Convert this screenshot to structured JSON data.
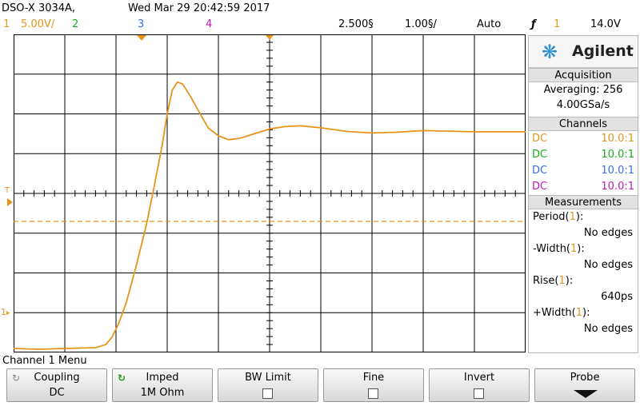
{
  "header": {
    "model": "DSO-X 3034A,",
    "datetime": "Wed Mar 29 20:42:59 2017",
    "ch1_num": "1",
    "ch1_scale": "5.00V/",
    "ch2_num": "2",
    "ch3_num": "3",
    "ch4_num": "4",
    "delay": "2.500§",
    "timebase": "1.00§/",
    "trigger_mode": "Auto",
    "trigger_symbol": "ƒ",
    "trigger_source": "1",
    "trigger_level": "14.0V"
  },
  "panel": {
    "brand": "Agilent",
    "acquisition_title": "Acquisition",
    "averaging": "Averaging: 256",
    "sample_rate": "4.00GSa/s",
    "channels_title": "Channels",
    "channels": [
      {
        "coupling": "DC",
        "probe": "10.0:1",
        "color": "#e8931a"
      },
      {
        "coupling": "DC",
        "probe": "10.0:1",
        "color": "#1aaa1a"
      },
      {
        "coupling": "DC",
        "probe": "10.0:1",
        "color": "#3a6ee8"
      },
      {
        "coupling": "DC",
        "probe": "10.0:1",
        "color": "#c21ab4"
      }
    ],
    "measurements_title": "Measurements",
    "measurements": [
      {
        "label": "Period(",
        "ch": "1",
        "close": "):",
        "value": "No edges"
      },
      {
        "label": "-Width(",
        "ch": "1",
        "close": "):",
        "value": "No edges"
      },
      {
        "label": "Rise(",
        "ch": "1",
        "close": "):",
        "value": "640ps"
      },
      {
        "label": "+Width(",
        "ch": "1",
        "close": "):",
        "value": "No edges"
      }
    ]
  },
  "menu": {
    "title": "Channel 1 Menu",
    "keys": [
      {
        "label": "Coupling",
        "value": "DC"
      },
      {
        "label": "Imped",
        "value": "1M Ohm"
      },
      {
        "label": "BW Limit",
        "value": ""
      },
      {
        "label": "Fine",
        "value": ""
      },
      {
        "label": "Invert",
        "value": ""
      },
      {
        "label": "Probe",
        "value": ""
      }
    ]
  },
  "screen": {
    "trace_color": "#e8931a",
    "grid_color": "#000000",
    "ground_label": "1",
    "trigger_marker": "T"
  },
  "waveform": [
    [
      0.0,
      7.9
    ],
    [
      0.5,
      7.92
    ],
    [
      1.0,
      7.9
    ],
    [
      1.6,
      7.88
    ],
    [
      1.8,
      7.8
    ],
    [
      1.92,
      7.62
    ],
    [
      2.05,
      7.28
    ],
    [
      2.2,
      6.75
    ],
    [
      2.4,
      5.8
    ],
    [
      2.6,
      4.75
    ],
    [
      2.75,
      3.8
    ],
    [
      2.9,
      2.8
    ],
    [
      3.0,
      2.0
    ],
    [
      3.1,
      1.4
    ],
    [
      3.2,
      1.2
    ],
    [
      3.3,
      1.25
    ],
    [
      3.45,
      1.55
    ],
    [
      3.6,
      1.9
    ],
    [
      3.8,
      2.35
    ],
    [
      4.0,
      2.55
    ],
    [
      4.2,
      2.65
    ],
    [
      4.4,
      2.62
    ],
    [
      4.7,
      2.5
    ],
    [
      5.0,
      2.38
    ],
    [
      5.3,
      2.32
    ],
    [
      5.6,
      2.3
    ],
    [
      6.0,
      2.35
    ],
    [
      6.5,
      2.44
    ],
    [
      7.0,
      2.48
    ],
    [
      7.5,
      2.46
    ],
    [
      8.0,
      2.42
    ],
    [
      9.0,
      2.45
    ],
    [
      10.0,
      2.45
    ]
  ]
}
